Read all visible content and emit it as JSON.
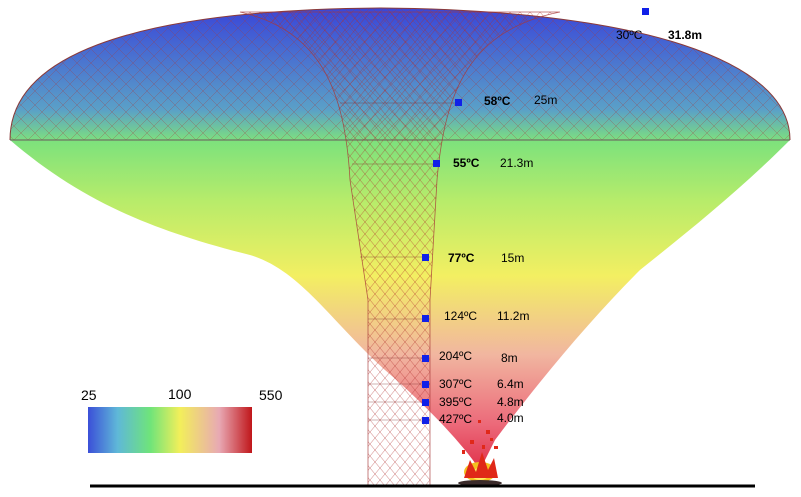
{
  "legend": {
    "min_label": "25",
    "mid_label": "100",
    "max_label": "550",
    "gradient_colors": [
      "#3b4fd8",
      "#5fb8d8",
      "#6fe47a",
      "#f2ef5a",
      "#e8a9b4",
      "#c0161a"
    ]
  },
  "colors": {
    "marker": "#1020e8",
    "ground": "#000000",
    "plume_top": "#3a4fd9",
    "plume_bottom": "#e05060"
  },
  "measurements": [
    {
      "temp": "30ºC",
      "height": "31.8m"
    },
    {
      "temp": "58ºC",
      "height": "25m"
    },
    {
      "temp": "55ºC",
      "height": "21.3m"
    },
    {
      "temp": "77ºC",
      "height": "15m"
    },
    {
      "temp": "124ºC",
      "height": "11.2m"
    },
    {
      "temp": "204ºC",
      "height": "8m"
    },
    {
      "temp": "307ºC",
      "height": "6.4m"
    },
    {
      "temp": "395ºC",
      "height": "4.8m"
    },
    {
      "temp": "427ºC",
      "height": "4.0m"
    }
  ]
}
